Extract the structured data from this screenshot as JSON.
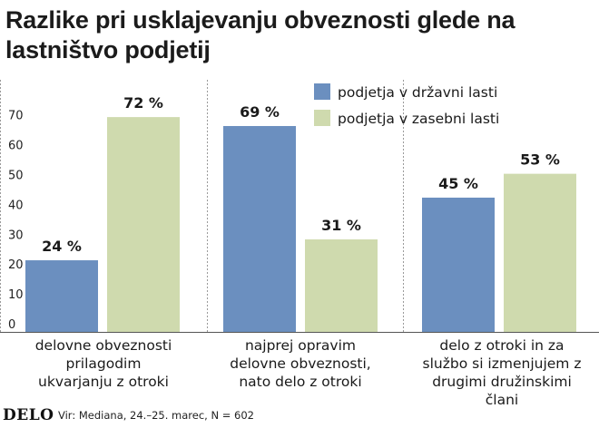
{
  "chart_data": {
    "type": "bar",
    "title": "Razlike pri usklajevanju obveznosti glede na lastništvo podjetij",
    "categories": [
      [
        "delovne obveznosti",
        "prilagodim",
        "ukvarjanju z otroki"
      ],
      [
        "najprej opravim",
        "delovne obveznosti,",
        "nato delo z otroki"
      ],
      [
        "delo z otroki in za",
        "službo si izmenjujem z",
        "drugimi družinskimi",
        "člani"
      ]
    ],
    "series": [
      {
        "name": "podjetja v državni lasti",
        "values": [
          24,
          69,
          45
        ],
        "labels": [
          "24 %",
          "69 %",
          "45 %"
        ],
        "color": "#6b8fbf"
      },
      {
        "name": "podjetja v zasebni lasti",
        "values": [
          72,
          31,
          53
        ],
        "labels": [
          "72 %",
          "31 %",
          "53 %"
        ],
        "color": "#cfdaae"
      }
    ],
    "yticks": [
      "0",
      "10",
      "20",
      "30",
      "40",
      "50",
      "60",
      "70"
    ],
    "ylim": [
      0,
      80
    ],
    "grid": false,
    "legend": "top-right"
  },
  "footer": {
    "logo": "DELO",
    "source": "Vir: Mediana, 24.–25. marec, N = 602"
  }
}
